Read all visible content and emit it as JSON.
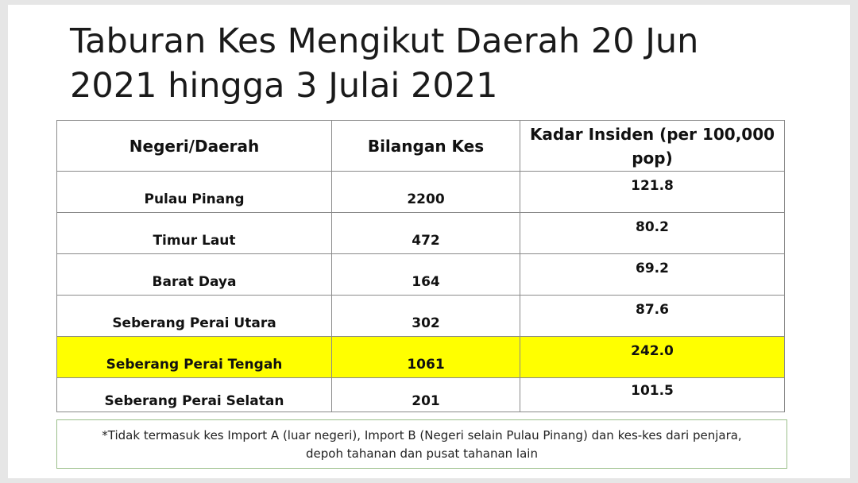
{
  "title": {
    "line1": "Taburan Kes Mengikut Daerah 20 Jun",
    "line2": "2021 hingga 3 Julai 2021"
  },
  "table": {
    "headers": [
      "Negeri/Daerah",
      "Bilangan Kes",
      "Kadar Insiden (per 100,000 pop)"
    ],
    "rows": [
      {
        "area": "Pulau Pinang",
        "cases": "2200",
        "rate": "121.8"
      },
      {
        "area": "Timur Laut",
        "cases": "472",
        "rate": "80.2"
      },
      {
        "area": "Barat Daya",
        "cases": "164",
        "rate": "69.2"
      },
      {
        "area": "Seberang Perai Utara",
        "cases": "302",
        "rate": "87.6"
      },
      {
        "area": "Seberang Perai Tengah",
        "cases": "1061",
        "rate": "242.0"
      },
      {
        "area": "Seberang Perai Selatan",
        "cases": "201",
        "rate": "101.5"
      }
    ],
    "highlight_color": "#ffff00"
  },
  "note": {
    "line1": "*Tidak termasuk kes Import A (luar negeri), Import B (Negeri selain Pulau Pinang) dan kes-kes dari penjara,",
    "line2": "depoh tahanan dan pusat tahanan lain"
  }
}
